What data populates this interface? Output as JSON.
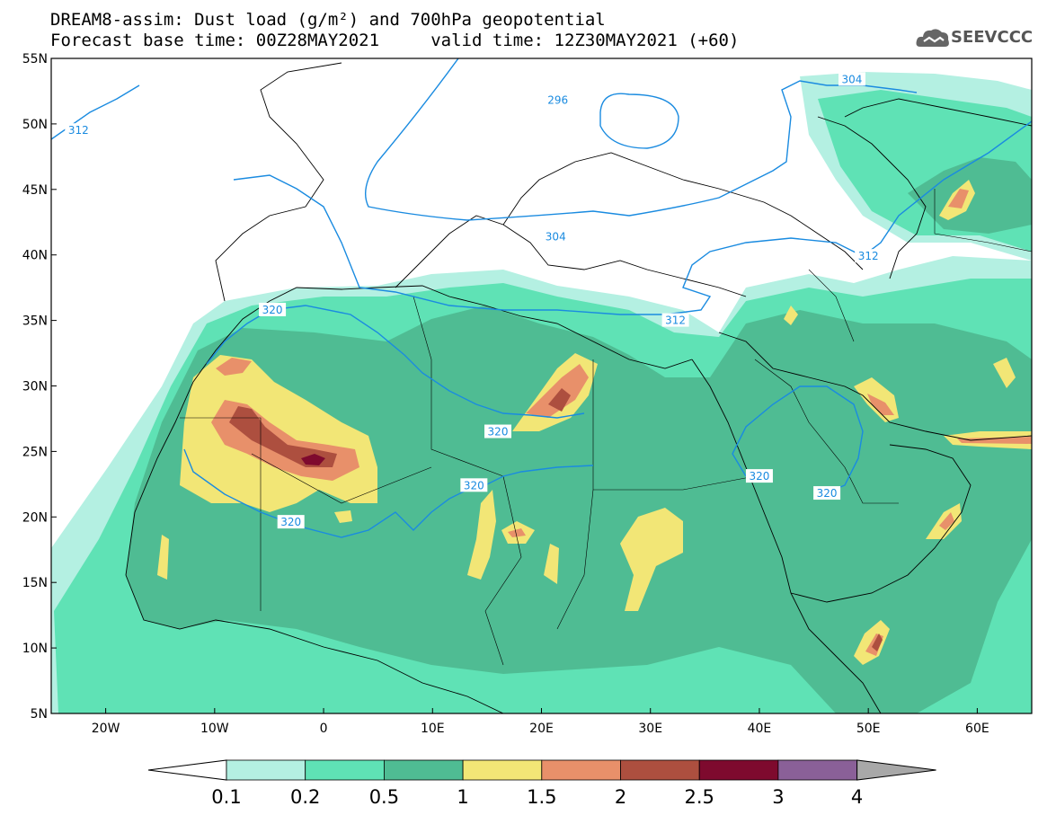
{
  "header": {
    "title_line1": "DREAM8-assim: Dust load (g/m²) and 700hPa geopotential",
    "title_line2": "Forecast base time: 00Z28MAY2021     valid time: 12Z30MAY2021 (+60)",
    "logo_text": "SEEVCCC"
  },
  "map": {
    "lat_labels": [
      "55N",
      "50N",
      "45N",
      "40N",
      "35N",
      "30N",
      "25N",
      "20N",
      "15N",
      "10N",
      "5N"
    ],
    "lat_values": [
      55,
      50,
      45,
      40,
      35,
      30,
      25,
      20,
      15,
      10,
      5
    ],
    "lon_labels": [
      "20W",
      "10W",
      "0",
      "10E",
      "20E",
      "30E",
      "40E",
      "50E",
      "60E"
    ],
    "lon_values": [
      -20,
      -10,
      0,
      10,
      20,
      30,
      40,
      50,
      60
    ],
    "lon_range": [
      -25,
      65
    ],
    "lat_range": [
      5,
      55
    ],
    "contour_labels": [
      {
        "text": "312",
        "lon": -22.5,
        "lat": 49.5
      },
      {
        "text": "296",
        "lon": 21.5,
        "lat": 51.8
      },
      {
        "text": "304",
        "lon": 48.5,
        "lat": 53.4
      },
      {
        "text": "304",
        "lon": 21.3,
        "lat": 41.4
      },
      {
        "text": "312",
        "lon": 50.0,
        "lat": 39.9
      },
      {
        "text": "312",
        "lon": 32.3,
        "lat": 35.0
      },
      {
        "text": "320",
        "lon": -4.7,
        "lat": 35.8
      },
      {
        "text": "320",
        "lon": 16.0,
        "lat": 26.5
      },
      {
        "text": "320",
        "lon": 13.8,
        "lat": 22.4
      },
      {
        "text": "320",
        "lon": -3.0,
        "lat": 19.6
      },
      {
        "text": "320",
        "lon": 40.0,
        "lat": 23.1
      },
      {
        "text": "320",
        "lon": 46.2,
        "lat": 21.8
      }
    ]
  },
  "legend": {
    "labels": [
      "0.1",
      "0.2",
      "0.5",
      "1",
      "1.5",
      "2",
      "2.5",
      "3",
      "4"
    ],
    "colors": [
      "#b4f0e2",
      "#5fe2b5",
      "#4fbc93",
      "#f2e676",
      "#e8906a",
      "#ad4f3f",
      "#7e0a2e",
      "#8a6098",
      "#a8a8a8"
    ],
    "under_color": "#ffffff"
  }
}
